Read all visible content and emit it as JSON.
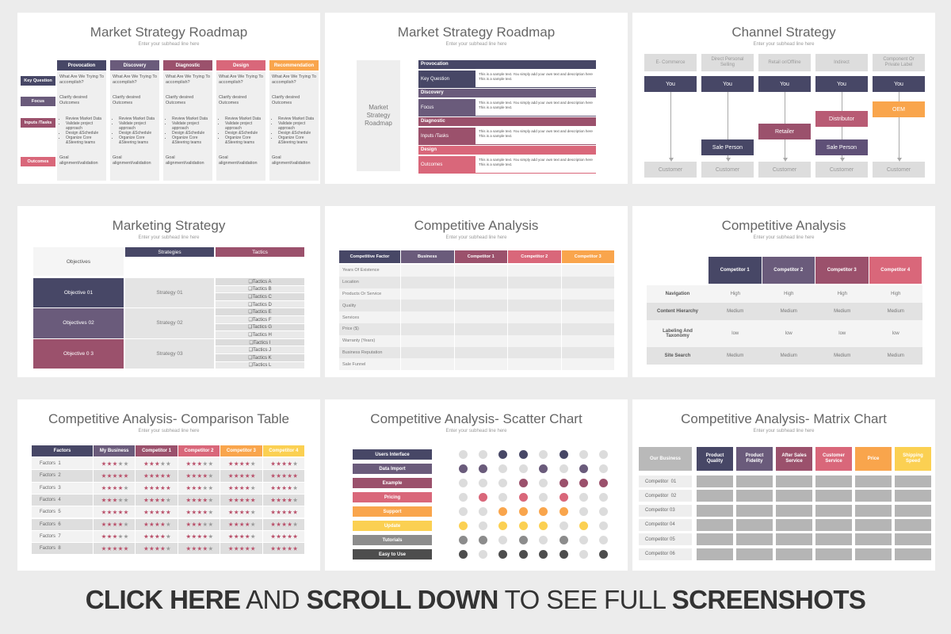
{
  "slides": [
    {
      "type": "roadmap-table",
      "title": "Market Strategy Roadmap",
      "subtitle": "Enter your subhead line here",
      "columns": [
        "Provocation",
        "Discovery",
        "Diagnostic",
        "Design",
        "Recommendation"
      ],
      "column_colors": [
        "#474766",
        "#6a5b7b",
        "#9b516c",
        "#d9677a",
        "#f9a54c"
      ],
      "row_colors": [
        "#474766",
        "#6a5b7b",
        "#9b516c",
        "#d9677a"
      ],
      "rows": [
        {
          "label": "Key Question",
          "text": "What Are We Trying To accomplish?"
        },
        {
          "label": "Focus",
          "text": "Clarify desired Outcomes"
        },
        {
          "label": "Inputs /Tasks",
          "items": [
            "Review Market Data",
            "Validate project approach",
            "Design &Schedule",
            "Organize Core &Steering teams"
          ]
        },
        {
          "label": "Outcomes",
          "text": "Goal alignment/validation"
        }
      ]
    },
    {
      "type": "roadmap-list",
      "title": "Market Strategy Roadmap",
      "subtitle": "Enter your subhead line here",
      "side_label": "Market Strategy Roadmap",
      "colors": [
        "#474766",
        "#6a5b7b",
        "#9b516c",
        "#d9677a"
      ],
      "sections": [
        {
          "header": "Provocation",
          "label": "Key Question"
        },
        {
          "header": "Discovery",
          "label": "Focus"
        },
        {
          "header": "Diagnostic",
          "label": "Inputs /Tasks"
        },
        {
          "header": "Design",
          "label": "Outcomes"
        }
      ],
      "description": "This is a sample text. You simply add your own text and description here This is a sample text."
    },
    {
      "type": "channel",
      "title": "Channel Strategy",
      "subtitle": "Enter your subhead line here",
      "source": "You",
      "source_color": "#474766",
      "target": "Customer",
      "channels": [
        {
          "name": "E- Commerce",
          "steps": []
        },
        {
          "name": "Direct Personal Selling",
          "steps": [
            {
              "label": "Sale Person",
              "color": "#474766"
            }
          ]
        },
        {
          "name": "Retail or/Offline",
          "steps": [
            {
              "label": "Retailer",
              "color": "#9b516c"
            }
          ]
        },
        {
          "name": "Indirect",
          "steps": [
            {
              "label": "Distributor",
              "color": "#b85b74"
            },
            {
              "label": "Sale Person",
              "color": "#5f5077"
            }
          ]
        },
        {
          "name": "Component Or Private Label",
          "steps": [
            {
              "label": "OEM",
              "color": "#f9a54c"
            }
          ]
        }
      ]
    },
    {
      "type": "strategy-table",
      "title": "Marketing Strategy",
      "subtitle": "Enter your subhead line here",
      "headers": [
        "Objectives",
        "Strategies",
        "Tactics"
      ],
      "header_colors": [
        "#474766",
        "#9b516c"
      ],
      "objective_colors": [
        "#474766",
        "#6a5b7b",
        "#9b516c"
      ],
      "objectives": [
        "Objective 01",
        "Objectives 02",
        "Objective 0 3"
      ],
      "strategies": [
        "Strategy 01",
        "Strategy 02",
        "Strategy 03"
      ],
      "tactics": [
        "❑Tactics A",
        "❑Tactics B",
        "❑Tactics C",
        "❑Tactics D",
        "❑Tactics E",
        "❑Tactics F",
        "❑Tactics G",
        "❑Tactics H",
        "❑Tactics I",
        "❑Tactics J",
        "❑Tactics K",
        "❑Tactics L"
      ]
    },
    {
      "type": "factor-table",
      "title": "Competitive Analysis",
      "subtitle": "Enter your subhead line here",
      "headers": [
        "Competitive Factor",
        "Business",
        "Competitor 1",
        "Competitor 2",
        "Competitor 3"
      ],
      "header_colors": [
        "#474766",
        "#6a5b7b",
        "#9b516c",
        "#d9677a",
        "#f9a54c"
      ],
      "rows": [
        "Years Of Existence",
        "Location",
        "Products Or Service",
        "Quality",
        "Services",
        "Price ($)",
        "Warranty (Years)",
        "Business Reputation",
        "Sale Funnel"
      ]
    },
    {
      "type": "rating-table",
      "title": "Competitive Analysis",
      "subtitle": "Enter your subhead line here",
      "headers": [
        "Competitor 1",
        "Competitor 2",
        "Competitor 3",
        "Competitor 4"
      ],
      "header_colors": [
        "#474766",
        "#6a5b7b",
        "#9b516c",
        "#d9677a"
      ],
      "rows": [
        {
          "label": "Navigation",
          "values": [
            "High",
            "High",
            "High",
            "High"
          ]
        },
        {
          "label": "Content Hierarchy",
          "values": [
            "Medium",
            "Medium",
            "Medium",
            "Medium"
          ]
        },
        {
          "label": "Labeling And Taxonomy",
          "values": [
            "low",
            "low",
            "low",
            "low"
          ]
        },
        {
          "label": "Site Search",
          "values": [
            "Medium",
            "Medium",
            "Medium",
            "Medium"
          ]
        }
      ]
    },
    {
      "type": "star-table",
      "title": "Competitive Analysis- Comparison Table",
      "subtitle": "Enter your subhead line here",
      "headers": [
        "Factors",
        "My Business",
        "Competitor 1",
        "Competitor 2",
        "Competitor 3",
        "Competitor 4"
      ],
      "header_colors": [
        "#474766",
        "#6a5b7b",
        "#9b516c",
        "#d9677a",
        "#f9a54c",
        "#fbd052"
      ],
      "star_color": "#b9506a",
      "stars_out_of": 5,
      "rows": [
        {
          "label": "Factors  1",
          "ratings": [
            3,
            3,
            3,
            4,
            4
          ]
        },
        {
          "label": "Factors  2",
          "ratings": [
            5,
            5,
            4,
            5,
            5
          ]
        },
        {
          "label": "Factors  3",
          "ratings": [
            4,
            5,
            3,
            4,
            4
          ]
        },
        {
          "label": "Factors  4",
          "ratings": [
            3,
            4,
            4,
            5,
            4
          ]
        },
        {
          "label": "Factors  5",
          "ratings": [
            5,
            5,
            4,
            4,
            5
          ]
        },
        {
          "label": "Factors  6",
          "ratings": [
            4,
            4,
            3,
            4,
            4
          ]
        },
        {
          "label": "Factors  7",
          "ratings": [
            3,
            4,
            4,
            4,
            5
          ]
        },
        {
          "label": "Factors  8",
          "ratings": [
            5,
            4,
            4,
            5,
            5
          ]
        }
      ]
    },
    {
      "type": "dot-chart",
      "title": "Competitive Analysis- Scatter Chart",
      "subtitle": "Enter your subhead line here",
      "rows": [
        {
          "label": "Users Interface",
          "color": "#474766",
          "dots": [
            0,
            0,
            1,
            1,
            0,
            1,
            0,
            0
          ]
        },
        {
          "label": "Data Import",
          "color": "#6a5b7b",
          "dots": [
            1,
            1,
            0,
            0,
            1,
            0,
            1,
            0
          ]
        },
        {
          "label": "Example",
          "color": "#9b516c",
          "dots": [
            0,
            0,
            0,
            1,
            0,
            1,
            1,
            1
          ]
        },
        {
          "label": "Pricing",
          "color": "#d9677a",
          "dots": [
            0,
            1,
            0,
            1,
            0,
            1,
            0,
            0
          ]
        },
        {
          "label": "Support",
          "color": "#f9a54c",
          "dots": [
            0,
            0,
            1,
            1,
            1,
            1,
            0,
            0
          ]
        },
        {
          "label": "Update",
          "color": "#fbd052",
          "dots": [
            1,
            0,
            1,
            1,
            1,
            0,
            1,
            0
          ]
        },
        {
          "label": "Tutorials",
          "color": "#8c8c8c",
          "dots": [
            1,
            1,
            0,
            1,
            0,
            1,
            0,
            0
          ]
        },
        {
          "label": "Easy to Use",
          "color": "#4d4d4d",
          "dots": [
            1,
            0,
            1,
            1,
            1,
            1,
            0,
            1
          ]
        }
      ]
    },
    {
      "type": "matrix",
      "title": "Competitive Analysis- Matrix Chart",
      "subtitle": "Enter your subhead line here",
      "headers": [
        "Our Business",
        "Product Quality",
        "Product Fidelity",
        "After Sales Service",
        "Customer Service",
        "Price",
        "Shipping Speed"
      ],
      "header_colors": [
        "#b9b9b9",
        "#474766",
        "#6a5b7b",
        "#9b516c",
        "#d9677a",
        "#f9a54c",
        "#fbd052"
      ],
      "rows": [
        "Competitor  01",
        "Competitor  02",
        "Competitor 03",
        "Competitor 04",
        "Competitor 05",
        "Competitor 06"
      ]
    }
  ],
  "footer": [
    {
      "text": "CLICK HERE",
      "bold": true
    },
    {
      "text": " AND ",
      "bold": false
    },
    {
      "text": "SCROLL DOWN",
      "bold": true
    },
    {
      "text": " TO SEE FULL ",
      "bold": false
    },
    {
      "text": "SCREENSHOTS",
      "bold": true
    }
  ]
}
